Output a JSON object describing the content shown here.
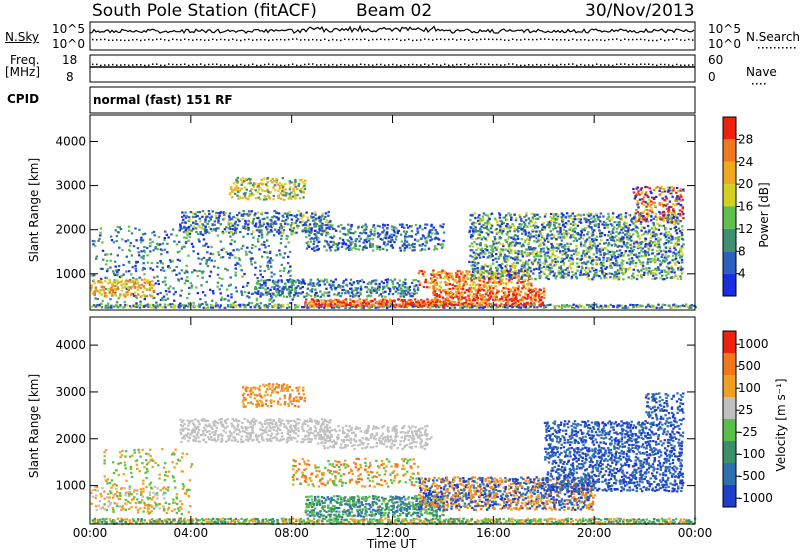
{
  "header": {
    "station": "South Pole Station (fitACF)",
    "beam": "Beam 02",
    "date": "30/Nov/2013"
  },
  "top_panels": {
    "nsky_label": "N.Sky",
    "nsky_ticks": [
      "10^5",
      "10^0"
    ],
    "nsearch_label": "N.Search",
    "freq_label_1": "Freq.",
    "freq_label_2": "[MHz]",
    "freq_ticks": [
      "18",
      "8"
    ],
    "nave_ticks": [
      "60",
      "0"
    ],
    "nave_label": "Nave",
    "cpid_label": "CPID",
    "cpid_value": "normal (fast) 151 RF"
  },
  "chart_data": [
    {
      "type": "heatmap",
      "name": "power",
      "ylabel": "Slant Range [km]",
      "y_ticks": [
        1000,
        2000,
        3000,
        4000
      ],
      "ylim": [
        180,
        4600
      ],
      "x_ticks": [
        "00:00",
        "04:00",
        "08:00",
        "12:00",
        "16:00",
        "20:00",
        "00:00"
      ],
      "xlim": [
        0,
        24
      ],
      "colorbar_label": "Power [dB]",
      "colorbar_ticks": [
        "28",
        "24",
        "20",
        "16",
        "12",
        "8",
        "4"
      ],
      "colors": [
        "#1a2de0",
        "#2c60c0",
        "#3f8f70",
        "#5fc050",
        "#d2d21e",
        "#f0a81e",
        "#f07820",
        "#ee2010"
      ]
    },
    {
      "type": "heatmap",
      "name": "velocity",
      "ylabel": "Slant Range [km]",
      "y_ticks": [
        1000,
        2000,
        3000,
        4000
      ],
      "ylim": [
        180,
        4600
      ],
      "x_ticks": [
        "00:00",
        "04:00",
        "08:00",
        "12:00",
        "16:00",
        "20:00",
        "00:00"
      ],
      "xlim": [
        0,
        24
      ],
      "xlabel": "Time UT",
      "colorbar_label": "Velocity [m s⁻¹]",
      "colorbar_ticks": [
        "1000",
        "500",
        "100",
        "25",
        "-25",
        "-100",
        "-500",
        "-1000"
      ],
      "colors": [
        "#1f3fc8",
        "#2e6fb0",
        "#3a9068",
        "#58c048",
        "#c0c0c0",
        "#f0a020",
        "#f07818",
        "#ee2010"
      ]
    }
  ]
}
